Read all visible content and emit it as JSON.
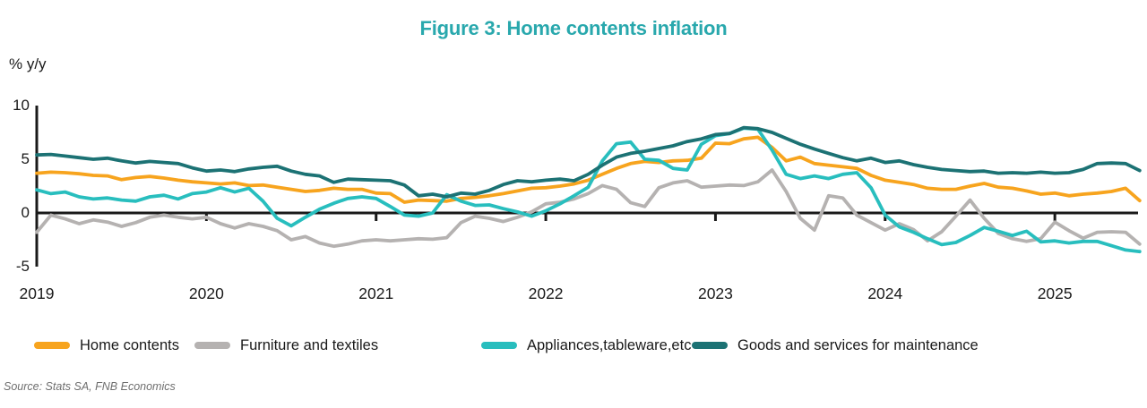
{
  "chart_data": {
    "type": "line",
    "title": "Figure 3: Home contents inflation",
    "title_color": "#29A8AD",
    "ylabel": "% y/y",
    "xlabel": "",
    "x_start": "2019-01",
    "frequency": "monthly",
    "x_tick_labels": [
      "2019",
      "2020",
      "2021",
      "2022",
      "2023",
      "2024",
      "2025"
    ],
    "y_ticks": [
      10,
      5,
      0,
      -5
    ],
    "ylim": [
      -5,
      10
    ],
    "grid": "off",
    "legend_position": "bottom",
    "axis_color": "#1a1a1a",
    "source": "Source: Stats SA, FNB Economics",
    "series": [
      {
        "name": "Home contents",
        "color": "#F7A41E",
        "values": [
          3.7,
          3.8,
          3.75,
          3.65,
          3.5,
          3.45,
          3.1,
          3.3,
          3.4,
          3.25,
          3.05,
          2.9,
          2.8,
          2.7,
          2.8,
          2.55,
          2.6,
          2.4,
          2.2,
          2.0,
          2.1,
          2.3,
          2.2,
          2.2,
          1.85,
          1.8,
          1.0,
          1.2,
          1.15,
          1.1,
          1.35,
          1.45,
          1.6,
          1.8,
          2.05,
          2.3,
          2.35,
          2.5,
          2.7,
          3.05,
          3.6,
          4.15,
          4.6,
          4.8,
          4.7,
          4.85,
          4.9,
          5.1,
          6.5,
          6.45,
          6.9,
          7.05,
          6.1,
          4.85,
          5.2,
          4.6,
          4.45,
          4.3,
          4.15,
          3.5,
          3.05,
          2.85,
          2.65,
          2.3,
          2.2,
          2.2,
          2.5,
          2.75,
          2.4,
          2.3,
          2.05,
          1.75,
          1.85,
          1.6,
          1.75,
          1.85,
          2.0,
          2.3,
          1.15
        ]
      },
      {
        "name": "Furniture and textiles",
        "color": "#B5B2B1",
        "values": [
          -1.8,
          -0.2,
          -0.55,
          -1.0,
          -0.65,
          -0.85,
          -1.25,
          -0.9,
          -0.4,
          -0.2,
          -0.4,
          -0.55,
          -0.4,
          -1.0,
          -1.4,
          -1.0,
          -1.25,
          -1.65,
          -2.5,
          -2.2,
          -2.8,
          -3.1,
          -2.9,
          -2.6,
          -2.5,
          -2.6,
          -2.5,
          -2.4,
          -2.45,
          -2.3,
          -0.9,
          -0.3,
          -0.5,
          -0.8,
          -0.4,
          0.1,
          0.85,
          1.0,
          1.3,
          1.8,
          2.55,
          2.2,
          0.95,
          0.6,
          2.35,
          2.8,
          3.0,
          2.4,
          2.5,
          2.6,
          2.55,
          2.9,
          4.0,
          2.0,
          -0.5,
          -1.6,
          1.6,
          1.4,
          -0.2,
          -0.9,
          -1.6,
          -1.0,
          -1.55,
          -2.6,
          -1.75,
          -0.3,
          1.2,
          -0.5,
          -1.9,
          -2.4,
          -2.65,
          -2.4,
          -0.85,
          -1.65,
          -2.35,
          -1.8,
          -1.75,
          -1.8,
          -2.9
        ]
      },
      {
        "name": "Appliances,tableware,etc",
        "color": "#28BEBE",
        "values": [
          2.15,
          1.8,
          1.95,
          1.5,
          1.3,
          1.4,
          1.2,
          1.1,
          1.5,
          1.65,
          1.3,
          1.8,
          1.95,
          2.35,
          1.95,
          2.3,
          1.1,
          -0.5,
          -1.2,
          -0.4,
          0.35,
          0.9,
          1.35,
          1.5,
          1.35,
          0.6,
          -0.2,
          -0.3,
          0.0,
          1.7,
          1.1,
          0.7,
          0.75,
          0.4,
          0.1,
          -0.3,
          0.2,
          0.85,
          1.6,
          2.4,
          4.85,
          6.45,
          6.6,
          5.0,
          4.9,
          4.15,
          4.0,
          6.4,
          7.2,
          7.4,
          7.9,
          7.8,
          5.85,
          3.6,
          3.2,
          3.45,
          3.2,
          3.6,
          3.75,
          2.35,
          -0.2,
          -1.3,
          -1.8,
          -2.4,
          -2.95,
          -2.75,
          -2.1,
          -1.35,
          -1.7,
          -2.1,
          -1.7,
          -2.7,
          -2.6,
          -2.8,
          -2.65,
          -2.65,
          -3.05,
          -3.45,
          -3.6
        ]
      },
      {
        "name": "Goods and services for maintenance",
        "color": "#1C7274",
        "values": [
          5.4,
          5.45,
          5.3,
          5.15,
          5.0,
          5.1,
          4.85,
          4.65,
          4.8,
          4.7,
          4.6,
          4.2,
          3.9,
          4.0,
          3.85,
          4.1,
          4.25,
          4.35,
          3.9,
          3.6,
          3.45,
          2.85,
          3.15,
          3.1,
          3.05,
          3.0,
          2.6,
          1.6,
          1.75,
          1.5,
          1.85,
          1.75,
          2.1,
          2.65,
          3.0,
          2.9,
          3.05,
          3.15,
          3.0,
          3.6,
          4.45,
          5.2,
          5.55,
          5.75,
          6.0,
          6.25,
          6.65,
          6.9,
          7.3,
          7.4,
          7.95,
          7.85,
          7.5,
          6.95,
          6.4,
          5.95,
          5.55,
          5.15,
          4.85,
          5.1,
          4.7,
          4.85,
          4.5,
          4.25,
          4.05,
          3.95,
          3.85,
          3.9,
          3.7,
          3.75,
          3.7,
          3.8,
          3.7,
          3.75,
          4.05,
          4.6,
          4.65,
          4.6,
          3.95
        ]
      }
    ]
  }
}
